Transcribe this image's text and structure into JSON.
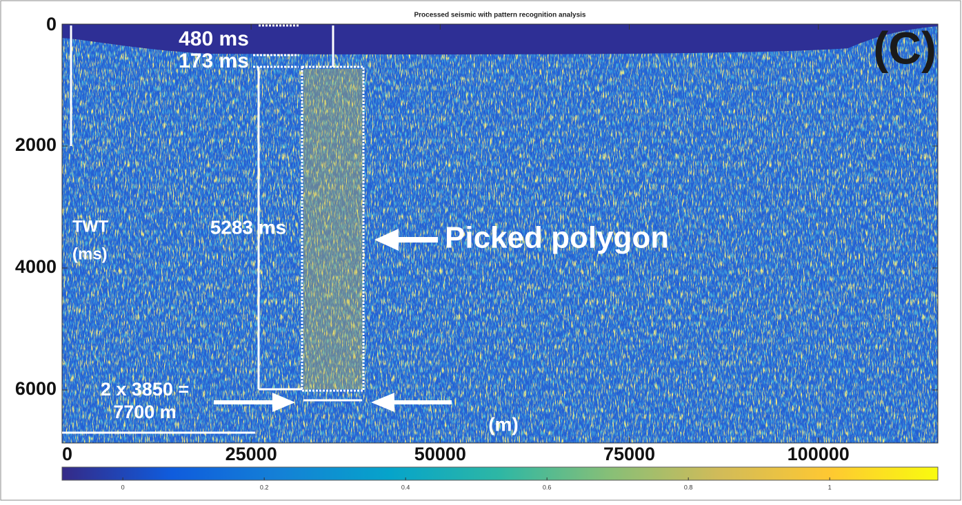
{
  "chart_data": {
    "type": "seismic-image",
    "title": "Processed seismic with pattern recognition analysis",
    "xlim": [
      0,
      115800
    ],
    "xticks": [
      0,
      25000,
      50000,
      75000,
      100000
    ],
    "ylim": [
      0,
      6870
    ],
    "yticks": [
      0,
      2000,
      4000,
      6000
    ],
    "y_inverted": true,
    "colorbar": {
      "clim": [
        -0.086,
        1.153
      ],
      "ticks": [
        0,
        0.2,
        0.4,
        0.6,
        0.8,
        1
      ],
      "colors": [
        "#352a87",
        "#0f5cdd",
        "#1481d6",
        "#06a4ca",
        "#2eb7a4",
        "#87bf77",
        "#d1bb59",
        "#fec832",
        "#f9fb0e"
      ]
    },
    "panel_label": "(C)",
    "annotations": [
      "480 ms",
      "173 ms",
      "5283 ms",
      "TWT",
      "(ms)",
      "Picked polygon",
      "2 x 3850 =",
      "7700 m",
      "(m)"
    ]
  }
}
